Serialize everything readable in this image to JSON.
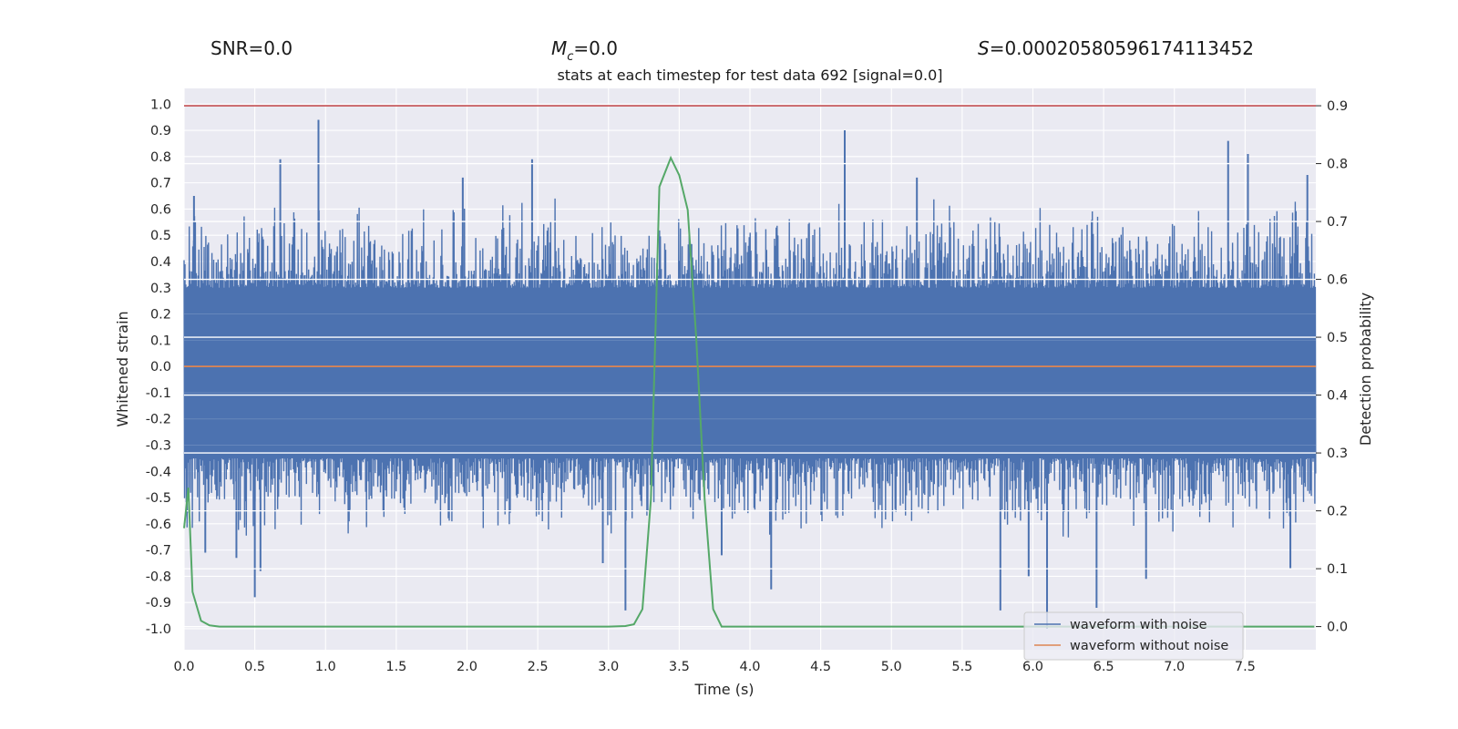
{
  "header": {
    "snr_label": "SNR=0.0",
    "mc_symbol": "M",
    "mc_sub": "c",
    "mc_value": "=0.0",
    "s_symbol": "S",
    "s_value": "=0.00020580596174113452"
  },
  "chart_data": {
    "type": "line",
    "title": "stats at each timestep for test data 692 [signal=0.0]",
    "xlabel": "Time (s)",
    "ylabel": "Whitened strain",
    "y2label": "Detection probability",
    "xlim": [
      0.0,
      8.0
    ],
    "ylim": [
      -1.08,
      1.06
    ],
    "y2lim": [
      -0.04,
      0.93
    ],
    "x_ticks": [
      "0.0",
      "0.5",
      "1.0",
      "1.5",
      "2.0",
      "2.5",
      "3.0",
      "3.5",
      "4.0",
      "4.5",
      "5.0",
      "5.5",
      "6.0",
      "6.5",
      "7.0",
      "7.5"
    ],
    "y_ticks": [
      "1.0",
      "0.9",
      "0.8",
      "0.7",
      "0.6",
      "0.5",
      "0.4",
      "0.3",
      "0.2",
      "0.1",
      "0.0",
      "-0.1",
      "-0.2",
      "-0.3",
      "-0.4",
      "-0.5",
      "-0.6",
      "-0.7",
      "-0.8",
      "-0.9",
      "-1.0"
    ],
    "y2_ticks": [
      "0.9",
      "0.8",
      "0.7",
      "0.6",
      "0.5",
      "0.4",
      "0.3",
      "0.2",
      "0.1",
      "0.0"
    ],
    "threshold": {
      "value": 0.9,
      "axis": "right",
      "color": "#c44e52"
    },
    "legend": {
      "placement": "lower-right",
      "entries": [
        {
          "label": "waveform with noise",
          "color": "#4c72b0"
        },
        {
          "label": "waveform without noise",
          "color": "#dd8452"
        }
      ]
    },
    "series": [
      {
        "name": "waveform with noise",
        "axis": "left",
        "color": "#4c72b0",
        "kind": "noise",
        "band_upper": 0.3,
        "band_lower": -0.35,
        "typical_upper": 0.45,
        "typical_lower": -0.48,
        "spikes": [
          {
            "x": 0.95,
            "y": 0.94
          },
          {
            "x": 0.68,
            "y": 0.79
          },
          {
            "x": 2.46,
            "y": 0.79
          },
          {
            "x": 4.67,
            "y": 0.9
          },
          {
            "x": 7.38,
            "y": 0.86
          },
          {
            "x": 7.52,
            "y": 0.81
          },
          {
            "x": 0.07,
            "y": 0.65
          },
          {
            "x": 1.97,
            "y": 0.72
          },
          {
            "x": 5.18,
            "y": 0.72
          },
          {
            "x": 7.94,
            "y": 0.73
          },
          {
            "x": 0.5,
            "y": -0.88
          },
          {
            "x": 0.54,
            "y": -0.78
          },
          {
            "x": 0.37,
            "y": -0.73
          },
          {
            "x": 3.12,
            "y": -0.93
          },
          {
            "x": 4.15,
            "y": -0.85
          },
          {
            "x": 5.77,
            "y": -0.93
          },
          {
            "x": 6.1,
            "y": -1.0
          },
          {
            "x": 6.45,
            "y": -0.92
          },
          {
            "x": 7.82,
            "y": -0.77
          },
          {
            "x": 6.8,
            "y": -0.81
          },
          {
            "x": 5.97,
            "y": -0.8
          },
          {
            "x": 3.8,
            "y": -0.72
          },
          {
            "x": 0.15,
            "y": -0.71
          },
          {
            "x": 2.96,
            "y": -0.75
          }
        ]
      },
      {
        "name": "waveform without noise",
        "axis": "left",
        "color": "#dd8452",
        "x": [
          0.0,
          8.0
        ],
        "y": [
          0.0,
          0.0
        ]
      },
      {
        "name": "detection probability",
        "axis": "right",
        "color": "#55a868",
        "x": [
          0.0,
          0.03,
          0.06,
          0.12,
          0.18,
          0.25,
          0.5,
          1.0,
          2.0,
          3.0,
          3.12,
          3.18,
          3.24,
          3.3,
          3.36,
          3.44,
          3.5,
          3.56,
          3.62,
          3.68,
          3.74,
          3.8,
          4.0,
          6.0,
          7.99
        ],
        "y": [
          0.17,
          0.24,
          0.06,
          0.01,
          0.002,
          0.0,
          0.0,
          0.0,
          0.0,
          0.0,
          0.001,
          0.004,
          0.03,
          0.22,
          0.76,
          0.81,
          0.78,
          0.72,
          0.5,
          0.22,
          0.03,
          0.0,
          0.0,
          0.0,
          0.0
        ]
      }
    ]
  }
}
